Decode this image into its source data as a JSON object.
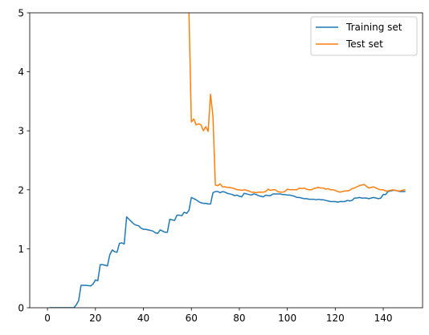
{
  "chart_data": {
    "type": "line",
    "title": "",
    "xlabel": "",
    "ylabel": "",
    "xlim": [
      -7.4,
      156.4
    ],
    "ylim": [
      0,
      5
    ],
    "x_ticks": [
      0,
      20,
      40,
      60,
      80,
      100,
      120,
      140
    ],
    "y_ticks": [
      0,
      1,
      2,
      3,
      4,
      5
    ],
    "grid": false,
    "legend_position": "top-right",
    "series": [
      {
        "name": "Training set",
        "color": "#1f77b4",
        "points": [
          [
            1,
            0.0
          ],
          [
            3,
            0.0
          ],
          [
            5,
            0.0
          ],
          [
            7,
            0.0
          ],
          [
            9,
            0.0
          ],
          [
            11,
            0.0
          ],
          [
            12,
            0.05
          ],
          [
            13,
            0.12
          ],
          [
            14,
            0.38
          ],
          [
            16,
            0.38
          ],
          [
            18,
            0.37
          ],
          [
            19,
            0.4
          ],
          [
            20,
            0.47
          ],
          [
            21,
            0.46
          ],
          [
            22,
            0.73
          ],
          [
            23,
            0.73
          ],
          [
            24,
            0.72
          ],
          [
            25,
            0.71
          ],
          [
            26,
            0.9
          ],
          [
            27,
            0.98
          ],
          [
            28,
            0.95
          ],
          [
            29,
            0.94
          ],
          [
            30,
            1.09
          ],
          [
            31,
            1.1
          ],
          [
            32,
            1.08
          ],
          [
            33,
            1.54
          ],
          [
            34,
            1.5
          ],
          [
            35,
            1.46
          ],
          [
            36,
            1.42
          ],
          [
            37,
            1.4
          ],
          [
            38,
            1.39
          ],
          [
            39,
            1.35
          ],
          [
            40,
            1.33
          ],
          [
            41,
            1.33
          ],
          [
            42,
            1.32
          ],
          [
            43,
            1.31
          ],
          [
            44,
            1.3
          ],
          [
            45,
            1.27
          ],
          [
            46,
            1.26
          ],
          [
            47,
            1.32
          ],
          [
            48,
            1.3
          ],
          [
            49,
            1.28
          ],
          [
            50,
            1.28
          ],
          [
            51,
            1.5
          ],
          [
            52,
            1.49
          ],
          [
            53,
            1.48
          ],
          [
            54,
            1.57
          ],
          [
            55,
            1.57
          ],
          [
            56,
            1.56
          ],
          [
            57,
            1.62
          ],
          [
            58,
            1.6
          ],
          [
            59,
            1.65
          ],
          [
            60,
            1.87
          ],
          [
            61,
            1.85
          ],
          [
            62,
            1.83
          ],
          [
            63,
            1.8
          ],
          [
            64,
            1.78
          ],
          [
            65,
            1.77
          ],
          [
            66,
            1.77
          ],
          [
            67,
            1.76
          ],
          [
            68,
            1.76
          ],
          [
            69,
            1.95
          ],
          [
            70,
            1.97
          ],
          [
            71,
            1.97
          ],
          [
            72,
            1.95
          ],
          [
            73,
            1.97
          ],
          [
            74,
            1.96
          ],
          [
            75,
            1.94
          ],
          [
            76,
            1.93
          ],
          [
            77,
            1.92
          ],
          [
            78,
            1.9
          ],
          [
            79,
            1.91
          ],
          [
            80,
            1.89
          ],
          [
            81,
            1.88
          ],
          [
            82,
            1.94
          ],
          [
            83,
            1.93
          ],
          [
            84,
            1.92
          ],
          [
            85,
            1.91
          ],
          [
            86,
            1.93
          ],
          [
            87,
            1.92
          ],
          [
            88,
            1.9
          ],
          [
            89,
            1.89
          ],
          [
            90,
            1.88
          ],
          [
            91,
            1.91
          ],
          [
            92,
            1.9
          ],
          [
            93,
            1.9
          ],
          [
            94,
            1.93
          ],
          [
            95,
            1.93
          ],
          [
            96,
            1.93
          ],
          [
            97,
            1.93
          ],
          [
            98,
            1.92
          ],
          [
            99,
            1.92
          ],
          [
            100,
            1.91
          ],
          [
            101,
            1.91
          ],
          [
            102,
            1.9
          ],
          [
            103,
            1.89
          ],
          [
            104,
            1.87
          ],
          [
            105,
            1.87
          ],
          [
            106,
            1.86
          ],
          [
            107,
            1.85
          ],
          [
            108,
            1.85
          ],
          [
            109,
            1.84
          ],
          [
            110,
            1.84
          ],
          [
            111,
            1.84
          ],
          [
            112,
            1.83
          ],
          [
            113,
            1.84
          ],
          [
            114,
            1.83
          ],
          [
            115,
            1.83
          ],
          [
            116,
            1.82
          ],
          [
            117,
            1.81
          ],
          [
            118,
            1.8
          ],
          [
            119,
            1.8
          ],
          [
            120,
            1.8
          ],
          [
            121,
            1.79
          ],
          [
            122,
            1.8
          ],
          [
            123,
            1.8
          ],
          [
            124,
            1.8
          ],
          [
            125,
            1.82
          ],
          [
            126,
            1.81
          ],
          [
            127,
            1.82
          ],
          [
            128,
            1.86
          ],
          [
            129,
            1.86
          ],
          [
            130,
            1.87
          ],
          [
            131,
            1.86
          ],
          [
            132,
            1.86
          ],
          [
            133,
            1.86
          ],
          [
            134,
            1.85
          ],
          [
            135,
            1.86
          ],
          [
            136,
            1.87
          ],
          [
            137,
            1.86
          ],
          [
            138,
            1.85
          ],
          [
            139,
            1.86
          ],
          [
            140,
            1.92
          ],
          [
            141,
            1.92
          ],
          [
            142,
            1.97
          ],
          [
            143,
            1.98
          ],
          [
            144,
            1.99
          ],
          [
            145,
            1.99
          ],
          [
            146,
            1.98
          ],
          [
            147,
            1.97
          ],
          [
            148,
            1.97
          ],
          [
            149,
            1.97
          ]
        ]
      },
      {
        "name": "Test set",
        "color": "#ff7f0e",
        "points": [
          [
            59,
            5.0
          ],
          [
            60,
            3.15
          ],
          [
            61,
            3.2
          ],
          [
            62,
            3.1
          ],
          [
            63,
            3.12
          ],
          [
            64,
            3.1
          ],
          [
            65,
            3.0
          ],
          [
            66,
            3.07
          ],
          [
            67,
            2.99
          ],
          [
            68,
            3.62
          ],
          [
            69,
            3.25
          ],
          [
            70,
            2.08
          ],
          [
            71,
            2.07
          ],
          [
            72,
            2.1
          ],
          [
            73,
            2.05
          ],
          [
            74,
            2.05
          ],
          [
            75,
            2.04
          ],
          [
            76,
            2.04
          ],
          [
            77,
            2.03
          ],
          [
            78,
            2.02
          ],
          [
            79,
            2.0
          ],
          [
            80,
            2.0
          ],
          [
            81,
            1.99
          ],
          [
            82,
            2.0
          ],
          [
            83,
            1.99
          ],
          [
            84,
            1.98
          ],
          [
            85,
            1.96
          ],
          [
            86,
            1.96
          ],
          [
            87,
            1.95
          ],
          [
            88,
            1.96
          ],
          [
            89,
            1.96
          ],
          [
            90,
            1.96
          ],
          [
            91,
            1.97
          ],
          [
            92,
            2.01
          ],
          [
            93,
            1.99
          ],
          [
            94,
            2.0
          ],
          [
            95,
            2.0
          ],
          [
            96,
            1.97
          ],
          [
            97,
            1.96
          ],
          [
            98,
            1.96
          ],
          [
            99,
            1.97
          ],
          [
            100,
            2.01
          ],
          [
            101,
            2.0
          ],
          [
            102,
            2.0
          ],
          [
            103,
            2.0
          ],
          [
            104,
            2.0
          ],
          [
            105,
            2.03
          ],
          [
            106,
            2.02
          ],
          [
            107,
            2.03
          ],
          [
            108,
            2.01
          ],
          [
            109,
            2.0
          ],
          [
            110,
            2.0
          ],
          [
            111,
            2.02
          ],
          [
            112,
            2.03
          ],
          [
            113,
            2.04
          ],
          [
            114,
            2.03
          ],
          [
            115,
            2.03
          ],
          [
            116,
            2.01
          ],
          [
            117,
            2.02
          ],
          [
            118,
            2.0
          ],
          [
            119,
            2.0
          ],
          [
            120,
            1.99
          ],
          [
            121,
            1.97
          ],
          [
            122,
            1.96
          ],
          [
            123,
            1.97
          ],
          [
            124,
            1.98
          ],
          [
            125,
            1.98
          ],
          [
            126,
            1.99
          ],
          [
            127,
            2.02
          ],
          [
            128,
            2.03
          ],
          [
            129,
            2.05
          ],
          [
            130,
            2.07
          ],
          [
            131,
            2.08
          ],
          [
            132,
            2.09
          ],
          [
            133,
            2.06
          ],
          [
            134,
            2.03
          ],
          [
            135,
            2.04
          ],
          [
            136,
            2.05
          ],
          [
            137,
            2.03
          ],
          [
            138,
            2.01
          ],
          [
            139,
            2.0
          ],
          [
            140,
            2.0
          ],
          [
            141,
            1.98
          ],
          [
            142,
            1.98
          ],
          [
            143,
            1.99
          ],
          [
            144,
            2.0
          ],
          [
            145,
            1.99
          ],
          [
            146,
            1.98
          ],
          [
            147,
            1.98
          ],
          [
            148,
            1.99
          ],
          [
            149,
            2.0
          ]
        ]
      }
    ]
  }
}
